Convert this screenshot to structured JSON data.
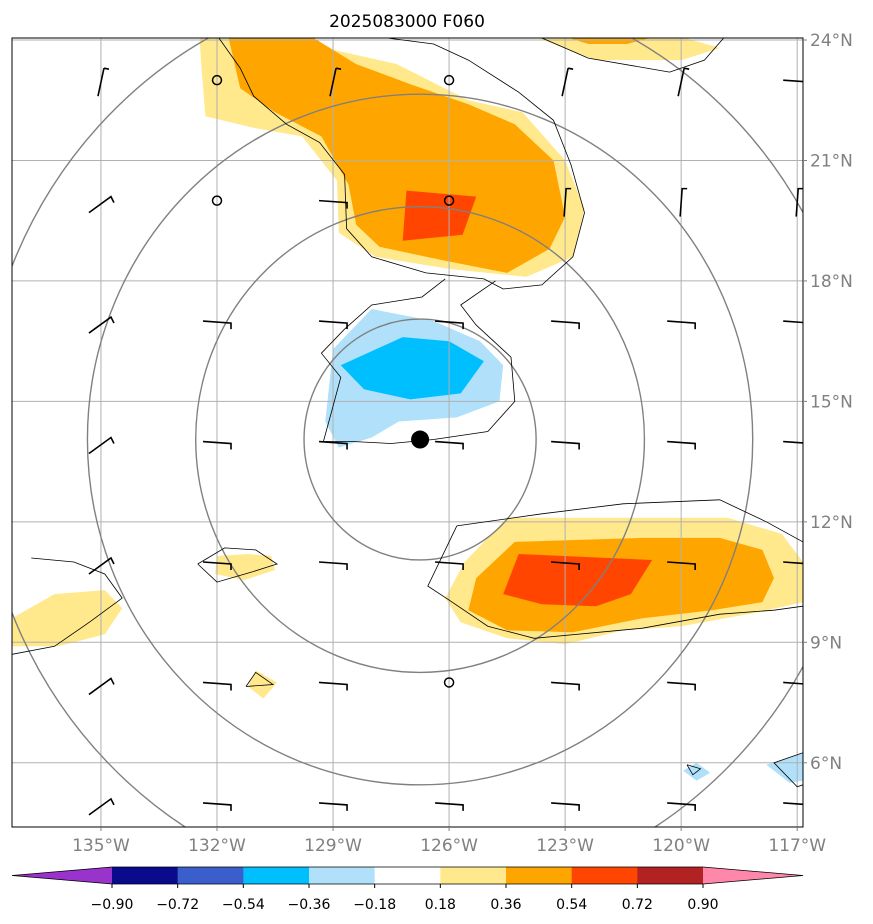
{
  "chart_data": {
    "type": "contour-map",
    "title": "2025083000 F060",
    "projection": "PlateCarree",
    "extent": {
      "lon": [
        -137.3,
        -116.85
      ],
      "lat": [
        4.4,
        24.05
      ]
    },
    "x_ticks": [
      -135,
      -132,
      -129,
      -126,
      -123,
      -120,
      -117
    ],
    "x_tick_labels": [
      "135°W",
      "132°W",
      "129°W",
      "126°W",
      "123°W",
      "120°W",
      "117°W"
    ],
    "y_ticks": [
      6,
      9,
      12,
      15,
      18,
      21,
      24
    ],
    "y_tick_labels": [
      "6°N",
      "9°N",
      "12°N",
      "15°N",
      "18°N",
      "21°N",
      "24°N"
    ],
    "gridlines": true,
    "colorbar": {
      "orientation": "horizontal",
      "extend": "both",
      "levels": [
        -0.9,
        -0.72,
        -0.54,
        -0.36,
        -0.18,
        0.18,
        0.36,
        0.54,
        0.72,
        0.9
      ],
      "tick_labels": [
        "−0.90",
        "−0.72",
        "−0.54",
        "−0.36",
        "−0.18",
        "0.18",
        "0.36",
        "0.54",
        "0.72",
        "0.90"
      ],
      "colors": [
        "#9933cc",
        "#0a0a8c",
        "#3a5fcd",
        "#00bfff",
        "#b0e0fa",
        "#ffffff",
        "#ffe98c",
        "#ffa500",
        "#ff4500",
        "#b22222",
        "#ff88aa"
      ]
    },
    "storm_center": {
      "lon": -126.75,
      "lat": 14.05
    },
    "range_rings": {
      "center": {
        "lon": -126.75,
        "lat": 14.05
      },
      "radii_deg": [
        3.0,
        5.8,
        8.6,
        11.4
      ]
    },
    "filled_regions": [
      {
        "level": 0.18,
        "color": "#ffe98c",
        "polygon": [
          [
            -132.45,
            24.05
          ],
          [
            -130.35,
            24.05
          ],
          [
            -127.35,
            23.4
          ],
          [
            -125.5,
            22.5
          ],
          [
            -124.1,
            22.2
          ],
          [
            -123.0,
            21.0
          ],
          [
            -122.5,
            19.8
          ],
          [
            -122.8,
            18.6
          ],
          [
            -124.0,
            18.1
          ],
          [
            -126.0,
            18.3
          ],
          [
            -127.9,
            18.6
          ],
          [
            -128.85,
            19.2
          ],
          [
            -128.9,
            20.5
          ],
          [
            -129.8,
            21.6
          ],
          [
            -131.0,
            21.8
          ],
          [
            -132.3,
            22.1
          ],
          [
            -132.4,
            23.3
          ]
        ]
      },
      {
        "level": 0.36,
        "color": "#ffa500",
        "polygon": [
          [
            -131.7,
            24.05
          ],
          [
            -129.5,
            24.05
          ],
          [
            -128.4,
            23.4
          ],
          [
            -127.0,
            22.9
          ],
          [
            -125.5,
            22.4
          ],
          [
            -124.3,
            21.9
          ],
          [
            -123.3,
            21.0
          ],
          [
            -123.0,
            19.6
          ],
          [
            -123.4,
            18.8
          ],
          [
            -124.5,
            18.2
          ],
          [
            -126.1,
            18.5
          ],
          [
            -127.8,
            18.85
          ],
          [
            -128.4,
            19.4
          ],
          [
            -128.6,
            20.4
          ],
          [
            -129.3,
            21.6
          ],
          [
            -130.5,
            22.2
          ],
          [
            -131.4,
            22.8
          ]
        ]
      },
      {
        "level": 0.54,
        "color": "#ff4500",
        "polygon": [
          [
            -127.1,
            20.25
          ],
          [
            -125.3,
            20.1
          ],
          [
            -125.65,
            19.15
          ],
          [
            -127.2,
            19.0
          ]
        ]
      },
      {
        "level": -0.18,
        "color": "#b0e0fa",
        "polygon": [
          [
            -128.0,
            17.3
          ],
          [
            -126.4,
            17.0
          ],
          [
            -125.2,
            16.5
          ],
          [
            -124.6,
            15.9
          ],
          [
            -124.7,
            15.0
          ],
          [
            -125.8,
            14.6
          ],
          [
            -127.3,
            14.5
          ],
          [
            -128.0,
            14.1
          ],
          [
            -128.85,
            13.85
          ],
          [
            -129.2,
            14.5
          ],
          [
            -129.1,
            15.4
          ],
          [
            -129.0,
            16.3
          ]
        ]
      },
      {
        "level": -0.36,
        "color": "#00bfff",
        "polygon": [
          [
            -127.2,
            16.6
          ],
          [
            -126.0,
            16.5
          ],
          [
            -125.1,
            16.0
          ],
          [
            -125.7,
            15.2
          ],
          [
            -127.0,
            15.05
          ],
          [
            -128.2,
            15.3
          ],
          [
            -128.8,
            15.9
          ]
        ]
      },
      {
        "level": 0.18,
        "color": "#ffe98c",
        "polygon": [
          [
            -124.5,
            12.1
          ],
          [
            -121.0,
            12.1
          ],
          [
            -118.8,
            12.1
          ],
          [
            -117.4,
            11.7
          ],
          [
            -116.85,
            11.0
          ],
          [
            -116.85,
            10.0
          ],
          [
            -118.0,
            9.75
          ],
          [
            -120.0,
            9.4
          ],
          [
            -121.5,
            9.3
          ],
          [
            -123.0,
            8.95
          ],
          [
            -124.5,
            9.1
          ],
          [
            -125.7,
            9.5
          ],
          [
            -126.1,
            10.1
          ],
          [
            -125.6,
            11.0
          ]
        ]
      },
      {
        "level": 0.36,
        "color": "#ffa500",
        "polygon": [
          [
            -124.3,
            11.5
          ],
          [
            -121.0,
            11.6
          ],
          [
            -119.0,
            11.6
          ],
          [
            -117.9,
            11.3
          ],
          [
            -117.6,
            10.6
          ],
          [
            -117.9,
            10.0
          ],
          [
            -119.2,
            9.8
          ],
          [
            -121.0,
            9.6
          ],
          [
            -122.8,
            9.25
          ],
          [
            -124.5,
            9.3
          ],
          [
            -125.5,
            9.8
          ],
          [
            -125.3,
            10.6
          ]
        ]
      },
      {
        "level": 0.54,
        "color": "#ff4500",
        "polygon": [
          [
            -124.2,
            11.2
          ],
          [
            -120.75,
            11.05
          ],
          [
            -121.3,
            10.2
          ],
          [
            -122.2,
            9.9
          ],
          [
            -123.6,
            9.95
          ],
          [
            -124.6,
            10.2
          ]
        ]
      },
      {
        "level": 0.18,
        "color": "#ffe98c",
        "polygon": [
          [
            -137.3,
            9.6
          ],
          [
            -136.2,
            10.2
          ],
          [
            -134.9,
            10.3
          ],
          [
            -134.45,
            9.85
          ],
          [
            -134.9,
            9.2
          ],
          [
            -136.1,
            8.9
          ],
          [
            -137.3,
            8.9
          ]
        ]
      },
      {
        "level": 0.18,
        "color": "#ffe98c",
        "polygon": [
          [
            -131.2,
            11.2
          ],
          [
            -130.6,
            11.15
          ],
          [
            -130.5,
            10.8
          ],
          [
            -131.3,
            10.55
          ],
          [
            -132.05,
            10.7
          ],
          [
            -132.0,
            11.15
          ]
        ]
      },
      {
        "level": 0.18,
        "color": "#ffe98c",
        "polygon": [
          [
            -131.0,
            8.3
          ],
          [
            -130.45,
            8.0
          ],
          [
            -130.8,
            7.6
          ],
          [
            -131.2,
            7.9
          ]
        ]
      },
      {
        "level": 0.18,
        "color": "#ffe98c",
        "polygon": [
          [
            -123.7,
            24.05
          ],
          [
            -119.9,
            24.05
          ],
          [
            -119.0,
            23.8
          ],
          [
            -120.0,
            23.5
          ],
          [
            -122.2,
            23.5
          ]
        ]
      },
      {
        "level": 0.36,
        "color": "#ffa500",
        "polygon": [
          [
            -122.9,
            24.05
          ],
          [
            -120.8,
            24.05
          ],
          [
            -121.4,
            23.9
          ],
          [
            -122.4,
            23.9
          ]
        ]
      },
      {
        "level": -0.18,
        "color": "#b0e0fa",
        "polygon": [
          [
            -119.6,
            6.0
          ],
          [
            -119.25,
            5.75
          ],
          [
            -119.6,
            5.55
          ],
          [
            -119.95,
            5.8
          ]
        ]
      },
      {
        "level": -0.18,
        "color": "#b0e0fa",
        "polygon": [
          [
            -116.85,
            6.25
          ],
          [
            -117.8,
            5.95
          ],
          [
            -117.2,
            5.5
          ],
          [
            -116.85,
            5.55
          ]
        ]
      }
    ],
    "contour_lines": [
      [
        [
          -131.95,
          24.05
        ],
        [
          -131.4,
          23.3
        ],
        [
          -131.05,
          22.6
        ],
        [
          -130.2,
          21.9
        ],
        [
          -129.35,
          21.45
        ],
        [
          -128.7,
          20.65
        ],
        [
          -128.65,
          19.3
        ],
        [
          -128.0,
          18.6
        ],
        [
          -126.6,
          18.2
        ],
        [
          -125.1,
          18.05
        ],
        [
          -124.6,
          17.8
        ],
        [
          -123.6,
          17.9
        ],
        [
          -122.8,
          18.6
        ],
        [
          -122.5,
          19.7
        ],
        [
          -122.85,
          20.9
        ],
        [
          -123.3,
          22.0
        ],
        [
          -124.2,
          22.7
        ],
        [
          -125.5,
          23.5
        ],
        [
          -126.4,
          23.9
        ],
        [
          -127.6,
          24.05
        ]
      ],
      [
        [
          -126.1,
          18.05
        ],
        [
          -126.7,
          17.6
        ],
        [
          -128.0,
          17.4
        ],
        [
          -128.7,
          16.8
        ],
        [
          -129.3,
          16.2
        ],
        [
          -128.8,
          15.6
        ],
        [
          -129.05,
          14.7
        ],
        [
          -129.25,
          14.0
        ]
      ],
      [
        [
          -124.8,
          18.0
        ],
        [
          -125.7,
          17.4
        ],
        [
          -125.3,
          16.9
        ],
        [
          -124.4,
          16.1
        ],
        [
          -124.3,
          15.0
        ],
        [
          -125.0,
          14.25
        ],
        [
          -126.4,
          14.05
        ],
        [
          -127.5,
          13.95
        ],
        [
          -128.5,
          14.0
        ],
        [
          -129.25,
          14.0
        ]
      ],
      [
        [
          -125.8,
          11.9
        ],
        [
          -123.6,
          12.2
        ],
        [
          -121.5,
          12.45
        ],
        [
          -119.0,
          12.55
        ],
        [
          -117.8,
          12.0
        ],
        [
          -116.85,
          11.5
        ]
      ],
      [
        [
          -125.8,
          11.9
        ],
        [
          -126.55,
          10.4
        ],
        [
          -126.0,
          10.05
        ],
        [
          -125.0,
          9.4
        ],
        [
          -123.8,
          9.1
        ],
        [
          -121.0,
          9.35
        ],
        [
          -119.0,
          9.7
        ],
        [
          -117.6,
          9.8
        ],
        [
          -116.85,
          9.9
        ]
      ],
      [
        [
          -136.8,
          11.1
        ],
        [
          -135.7,
          11.0
        ],
        [
          -134.9,
          10.7
        ],
        [
          -134.45,
          10.1
        ],
        [
          -135.3,
          9.5
        ],
        [
          -136.2,
          8.9
        ],
        [
          -137.3,
          8.7
        ]
      ],
      [
        [
          -132.5,
          10.95
        ],
        [
          -131.8,
          11.35
        ],
        [
          -131.0,
          11.3
        ],
        [
          -130.45,
          10.95
        ],
        [
          -131.1,
          10.75
        ],
        [
          -132.0,
          10.5
        ],
        [
          -132.5,
          10.95
        ]
      ],
      [
        [
          -131.25,
          7.9
        ],
        [
          -131.0,
          8.25
        ],
        [
          -130.55,
          7.95
        ],
        [
          -131.25,
          7.9
        ]
      ],
      [
        [
          -123.6,
          24.05
        ],
        [
          -122.4,
          23.55
        ],
        [
          -120.3,
          23.2
        ],
        [
          -119.4,
          23.5
        ],
        [
          -118.9,
          24.05
        ]
      ],
      [
        [
          -119.85,
          5.95
        ],
        [
          -119.5,
          5.85
        ],
        [
          -119.7,
          5.7
        ],
        [
          -119.85,
          5.95
        ]
      ],
      [
        [
          -116.85,
          6.25
        ],
        [
          -117.6,
          6.0
        ],
        [
          -117.0,
          5.4
        ],
        [
          -116.85,
          5.45
        ]
      ]
    ],
    "wind_barbs": [
      {
        "lon": -135,
        "lat": 23,
        "type": "barb"
      },
      {
        "lon": -132,
        "lat": 23,
        "type": "calm"
      },
      {
        "lon": -129,
        "lat": 23,
        "type": "barb"
      },
      {
        "lon": -126,
        "lat": 23,
        "type": "calm"
      },
      {
        "lon": -123,
        "lat": 23,
        "type": "barb"
      },
      {
        "lon": -120,
        "lat": 23,
        "type": "barb"
      },
      {
        "lon": -117,
        "lat": 23,
        "type": "barb"
      },
      {
        "lon": -135,
        "lat": 20,
        "type": "barb"
      },
      {
        "lon": -132,
        "lat": 20,
        "type": "calm"
      },
      {
        "lon": -129,
        "lat": 20,
        "type": "barb"
      },
      {
        "lon": -126,
        "lat": 20,
        "type": "calm"
      },
      {
        "lon": -123,
        "lat": 20,
        "type": "barb"
      },
      {
        "lon": -120,
        "lat": 20,
        "type": "barb"
      },
      {
        "lon": -117,
        "lat": 20,
        "type": "barb"
      },
      {
        "lon": -135,
        "lat": 17,
        "type": "barb"
      },
      {
        "lon": -132,
        "lat": 17,
        "type": "barb"
      },
      {
        "lon": -129,
        "lat": 17,
        "type": "barb"
      },
      {
        "lon": -126,
        "lat": 17,
        "type": "barb"
      },
      {
        "lon": -123,
        "lat": 17,
        "type": "barb"
      },
      {
        "lon": -120,
        "lat": 17,
        "type": "barb"
      },
      {
        "lon": -117,
        "lat": 17,
        "type": "barb"
      },
      {
        "lon": -135,
        "lat": 14,
        "type": "barb"
      },
      {
        "lon": -132,
        "lat": 14,
        "type": "barb"
      },
      {
        "lon": -129,
        "lat": 14,
        "type": "barb"
      },
      {
        "lon": -126,
        "lat": 14,
        "type": "barb"
      },
      {
        "lon": -123,
        "lat": 14,
        "type": "barb"
      },
      {
        "lon": -120,
        "lat": 14,
        "type": "barb"
      },
      {
        "lon": -117,
        "lat": 14,
        "type": "barb"
      },
      {
        "lon": -135,
        "lat": 11,
        "type": "barb"
      },
      {
        "lon": -132,
        "lat": 11,
        "type": "barb"
      },
      {
        "lon": -129,
        "lat": 11,
        "type": "barb"
      },
      {
        "lon": -126,
        "lat": 11,
        "type": "barb"
      },
      {
        "lon": -123,
        "lat": 11,
        "type": "barb"
      },
      {
        "lon": -120,
        "lat": 11,
        "type": "barb"
      },
      {
        "lon": -117,
        "lat": 11,
        "type": "barb"
      },
      {
        "lon": -135,
        "lat": 8,
        "type": "barb"
      },
      {
        "lon": -132,
        "lat": 8,
        "type": "barb"
      },
      {
        "lon": -129,
        "lat": 8,
        "type": "barb"
      },
      {
        "lon": -126,
        "lat": 8,
        "type": "calm"
      },
      {
        "lon": -123,
        "lat": 8,
        "type": "barb"
      },
      {
        "lon": -120,
        "lat": 8,
        "type": "barb"
      },
      {
        "lon": -117,
        "lat": 8,
        "type": "barb"
      },
      {
        "lon": -135,
        "lat": 5,
        "type": "barb"
      },
      {
        "lon": -132,
        "lat": 5,
        "type": "barb"
      },
      {
        "lon": -129,
        "lat": 5,
        "type": "barb"
      },
      {
        "lon": -126,
        "lat": 5,
        "type": "barb"
      },
      {
        "lon": -123,
        "lat": 5,
        "type": "barb"
      },
      {
        "lon": -120,
        "lat": 5,
        "type": "barb"
      },
      {
        "lon": -117,
        "lat": 5,
        "type": "barb"
      }
    ]
  }
}
